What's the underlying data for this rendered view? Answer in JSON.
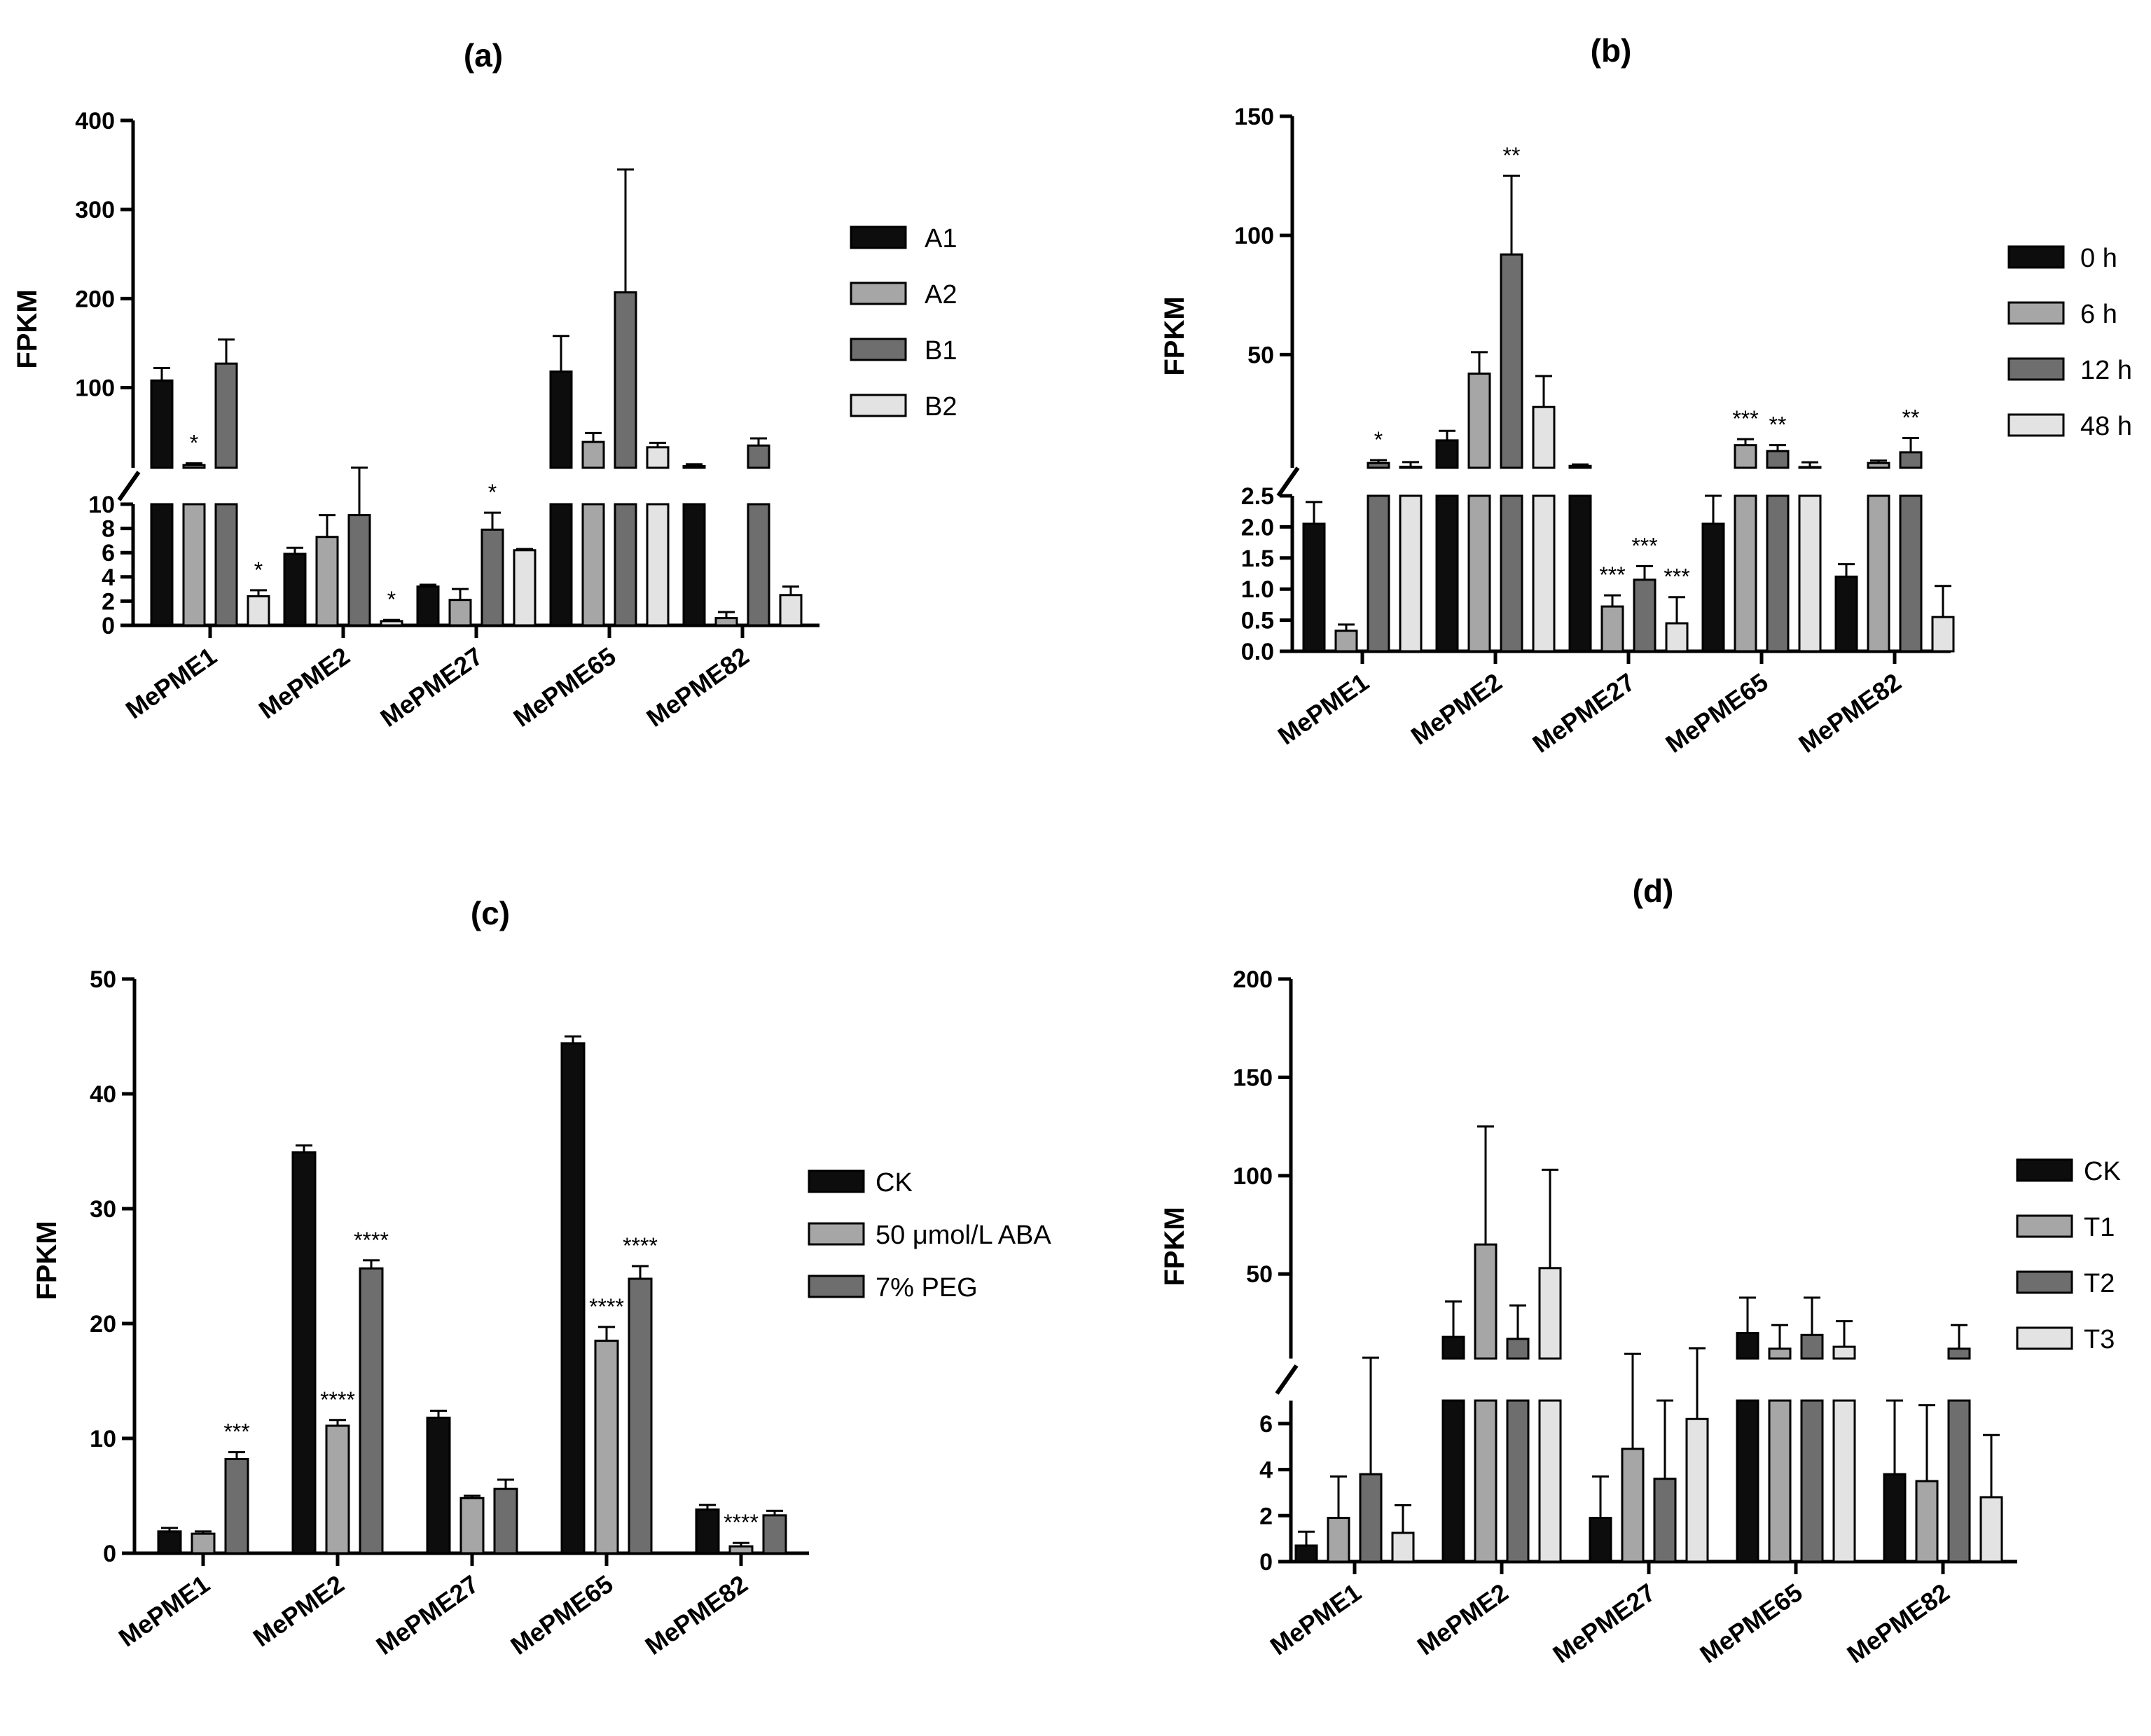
{
  "colors": {
    "series": [
      "#0d0d0d",
      "#a6a6a6",
      "#6e6e6e",
      "#e3e3e3"
    ],
    "stroke": "#000000"
  },
  "chart_data": [
    {
      "id": "a",
      "type": "bar",
      "title": "(a)",
      "ylabel": "FPKM",
      "broken_axis": true,
      "categories": [
        "MePME1",
        "MePME2",
        "MePME27",
        "MePME65",
        "MePME82"
      ],
      "legend": [
        "A1",
        "A2",
        "B1",
        "B2"
      ],
      "legend_position": "right",
      "lower": {
        "range": [
          0,
          10
        ],
        "ticks": [
          0,
          2,
          4,
          6,
          8,
          10
        ],
        "tick_labels": [
          "0",
          "2",
          "4",
          "6",
          "8",
          "10"
        ]
      },
      "upper": {
        "range": [
          10,
          400
        ],
        "ticks": [
          100,
          200,
          300,
          400
        ],
        "tick_labels": [
          "100",
          "200",
          "300",
          "400"
        ]
      },
      "series": [
        {
          "name": "A1",
          "values": [
            108,
            5.9,
            3.2,
            118,
            12
          ],
          "errors": [
            14,
            0.5,
            0.15,
            40,
            2
          ]
        },
        {
          "name": "A2",
          "values": [
            13,
            7.3,
            2.1,
            39,
            0.6
          ],
          "errors": [
            2,
            1.8,
            0.9,
            10,
            0.5
          ]
        },
        {
          "name": "B1",
          "values": [
            127,
            9.1,
            7.9,
            207,
            35
          ],
          "errors": [
            27,
            1.0,
            1.4,
            138,
            8
          ]
        },
        {
          "name": "B2",
          "values": [
            2.4,
            0.35,
            6.2,
            33,
            2.5
          ],
          "errors": [
            0.5,
            0.1,
            0.1,
            5,
            0.7
          ]
        }
      ],
      "annotations": [
        {
          "category": 0,
          "series": 1,
          "text": "*"
        },
        {
          "category": 0,
          "series": 3,
          "text": "*"
        },
        {
          "category": 1,
          "series": 3,
          "text": "*"
        },
        {
          "category": 2,
          "series": 2,
          "text": "*"
        }
      ]
    },
    {
      "id": "b",
      "type": "bar",
      "title": "(b)",
      "ylabel": "FPKM",
      "broken_axis": true,
      "categories": [
        "MePME1",
        "MePME2",
        "MePME27",
        "MePME65",
        "MePME82"
      ],
      "legend": [
        "0 h",
        "6 h",
        "12 h",
        "48 h"
      ],
      "legend_position": "right",
      "lower": {
        "range": [
          0,
          2.5
        ],
        "ticks": [
          0,
          0.5,
          1,
          1.5,
          2,
          2.5
        ],
        "tick_labels": [
          "0.0",
          "0.5",
          "1.0",
          "1.5",
          "2.0",
          "2.5"
        ]
      },
      "upper": {
        "range": [
          2.5,
          150
        ],
        "ticks": [
          50,
          100,
          150
        ],
        "tick_labels": [
          "50",
          "100",
          "150"
        ]
      },
      "series": [
        {
          "name": "0 h",
          "values": [
            2.05,
            14,
            3.3,
            2.05,
            1.2
          ],
          "errors": [
            0.35,
            4,
            0.6,
            0.45,
            0.2
          ]
        },
        {
          "name": "6 h",
          "values": [
            0.33,
            42,
            0.72,
            12,
            4.5
          ],
          "errors": [
            0.1,
            9,
            0.18,
            2.5,
            1
          ]
        },
        {
          "name": "12 h",
          "values": [
            4.5,
            92,
            1.15,
            9.5,
            9
          ],
          "errors": [
            1.2,
            33,
            0.22,
            2.5,
            6
          ]
        },
        {
          "name": "48 h",
          "values": [
            2.9,
            28,
            0.45,
            2.8,
            0.55
          ],
          "errors": [
            2,
            13,
            0.42,
            2,
            0.5
          ]
        }
      ],
      "annotations": [
        {
          "category": 0,
          "series": 2,
          "text": "*"
        },
        {
          "category": 1,
          "series": 2,
          "text": "**"
        },
        {
          "category": 2,
          "series": 1,
          "text": "***"
        },
        {
          "category": 2,
          "series": 2,
          "text": "***"
        },
        {
          "category": 2,
          "series": 3,
          "text": "***"
        },
        {
          "category": 3,
          "series": 1,
          "text": "***"
        },
        {
          "category": 3,
          "series": 2,
          "text": "**"
        },
        {
          "category": 4,
          "series": 2,
          "text": "**"
        }
      ]
    },
    {
      "id": "c",
      "type": "bar",
      "title": "(c)",
      "ylabel": "FPKM",
      "broken_axis": false,
      "categories": [
        "MePME1",
        "MePME2",
        "MePME27",
        "MePME65",
        "MePME82"
      ],
      "legend": [
        "CK",
        "50 μmol/L ABA",
        "7% PEG"
      ],
      "legend_position": "right",
      "ylim": [
        0,
        50
      ],
      "ticks": [
        0,
        10,
        20,
        30,
        40,
        50
      ],
      "tick_labels": [
        "0",
        "10",
        "20",
        "30",
        "40",
        "50"
      ],
      "series": [
        {
          "name": "CK",
          "values": [
            1.9,
            34.9,
            11.8,
            44.4,
            3.8
          ],
          "errors": [
            0.3,
            0.6,
            0.6,
            0.6,
            0.4
          ]
        },
        {
          "name": "50 μmol/L ABA",
          "values": [
            1.7,
            11.1,
            4.8,
            18.5,
            0.6
          ],
          "errors": [
            0.2,
            0.5,
            0.2,
            1.2,
            0.3
          ]
        },
        {
          "name": "7% PEG",
          "values": [
            8.2,
            24.8,
            5.6,
            23.9,
            3.3
          ],
          "errors": [
            0.6,
            0.7,
            0.8,
            1.1,
            0.4
          ]
        }
      ],
      "annotations": [
        {
          "category": 0,
          "series": 2,
          "text": "***"
        },
        {
          "category": 1,
          "series": 1,
          "text": "****"
        },
        {
          "category": 1,
          "series": 2,
          "text": "****"
        },
        {
          "category": 3,
          "series": 1,
          "text": "****"
        },
        {
          "category": 3,
          "series": 2,
          "text": "****"
        },
        {
          "category": 4,
          "series": 1,
          "text": "****"
        }
      ]
    },
    {
      "id": "d",
      "type": "bar",
      "title": "(d)",
      "ylabel": "FPKM",
      "broken_axis": true,
      "categories": [
        "MePME1",
        "MePME2",
        "MePME27",
        "MePME65",
        "MePME82"
      ],
      "legend": [
        "CK",
        "T1",
        "T2",
        "T3"
      ],
      "legend_position": "right",
      "lower": {
        "range": [
          0,
          7
        ],
        "ticks": [
          0,
          2,
          4,
          6
        ],
        "tick_labels": [
          "0",
          "2",
          "4",
          "6"
        ]
      },
      "upper": {
        "range": [
          7,
          200
        ],
        "ticks": [
          50,
          100,
          150,
          200
        ],
        "tick_labels": [
          "50",
          "100",
          "150",
          "200"
        ]
      },
      "series": [
        {
          "name": "CK",
          "values": [
            0.7,
            18,
            1.9,
            20,
            3.8
          ],
          "errors": [
            0.6,
            18,
            1.8,
            18,
            3.2
          ]
        },
        {
          "name": "T1",
          "values": [
            1.9,
            65,
            4.9,
            12,
            3.5
          ],
          "errors": [
            1.8,
            60,
            4.5,
            12,
            3.3
          ]
        },
        {
          "name": "T2",
          "values": [
            3.8,
            17,
            3.6,
            19,
            12
          ],
          "errors": [
            3.6,
            17,
            3.4,
            19,
            12
          ]
        },
        {
          "name": "T3",
          "values": [
            1.25,
            53,
            6.2,
            13,
            2.8
          ],
          "errors": [
            1.2,
            50,
            6,
            13,
            2.7
          ]
        }
      ],
      "annotations": []
    }
  ]
}
